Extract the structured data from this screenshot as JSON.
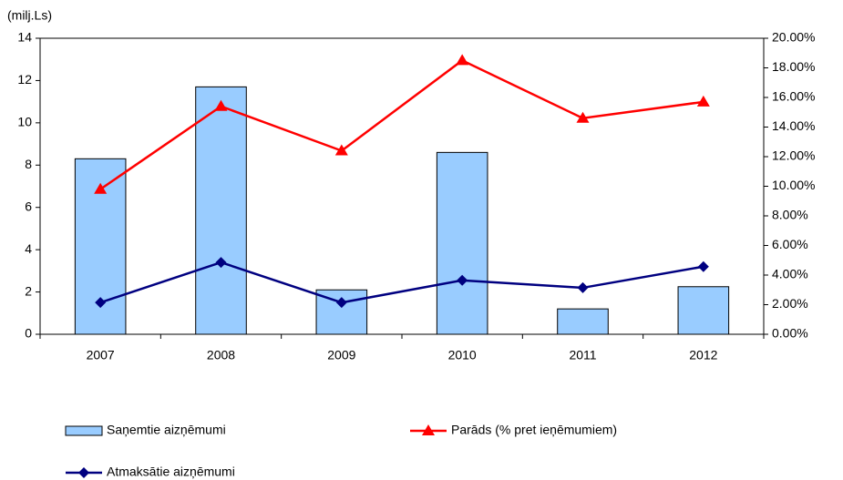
{
  "chart_data": {
    "type": "bar",
    "y_label": "(milj.Ls)",
    "categories": [
      "2007",
      "2008",
      "2009",
      "2010",
      "2011",
      "2012"
    ],
    "series": [
      {
        "name": "Saņemtie aizņēmumi",
        "type": "bar",
        "color": "#99ccff",
        "values": [
          8.3,
          11.7,
          2.1,
          8.6,
          1.2,
          2.25
        ]
      },
      {
        "name": "Parāds (% pret ieņēmumiem)",
        "type": "line",
        "marker": "triangle",
        "axis": "y2",
        "color": "#ff0000",
        "values": [
          9.8,
          15.4,
          12.4,
          18.5,
          14.6,
          15.7
        ]
      },
      {
        "name": "Atmaksātie aizņēmumi",
        "type": "line",
        "marker": "diamond",
        "color": "#000080",
        "values": [
          1.5,
          3.4,
          1.5,
          2.55,
          2.2,
          3.2
        ]
      }
    ],
    "ylim": [
      0,
      14
    ],
    "yticks": [
      0,
      2,
      4,
      6,
      8,
      10,
      12,
      14
    ],
    "y2lim": [
      0,
      20
    ],
    "y2ticks": [
      {
        "value": 0,
        "label": "0.00%"
      },
      {
        "value": 2,
        "label": "2.00%"
      },
      {
        "value": 4,
        "label": "4.00%"
      },
      {
        "value": 6,
        "label": "6.00%"
      },
      {
        "value": 8,
        "label": "8.00%"
      },
      {
        "value": 10,
        "label": "10.00%"
      },
      {
        "value": 12,
        "label": "12.00%"
      },
      {
        "value": 14,
        "label": "14.00%"
      },
      {
        "value": 16,
        "label": "16.00%"
      },
      {
        "value": 18,
        "label": "18.00%"
      },
      {
        "value": 20,
        "label": "20.00%"
      }
    ],
    "grid": false
  }
}
